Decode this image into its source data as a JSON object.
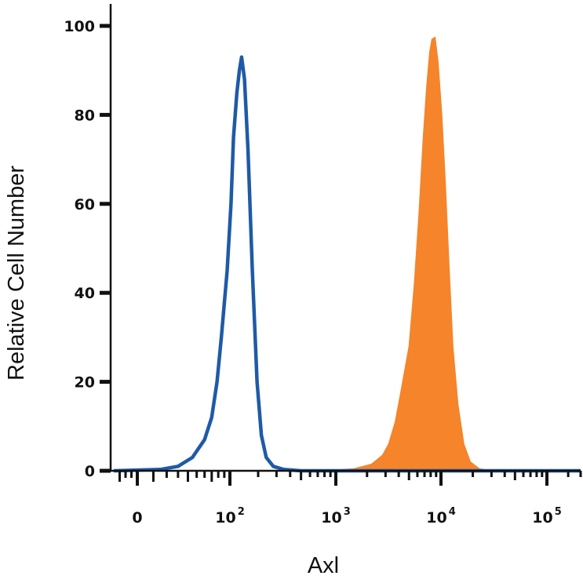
{
  "chart_data": {
    "type": "area",
    "xlabel": "Axl",
    "ylabel": "Relative Cell Number",
    "x_scale": "biexponential",
    "xlim": [
      -40,
      300000
    ],
    "ylim": [
      0,
      100
    ],
    "y_ticks": [
      {
        "value": 0,
        "label": "0"
      },
      {
        "value": 20,
        "label": "20"
      },
      {
        "value": 40,
        "label": "40"
      },
      {
        "value": 60,
        "label": "60"
      },
      {
        "value": 80,
        "label": "80"
      },
      {
        "value": 100,
        "label": "100"
      }
    ],
    "x_ticks": [
      {
        "value": 0,
        "base": "0",
        "exp": ""
      },
      {
        "value": 100,
        "base": "10",
        "exp": "2"
      },
      {
        "value": 1000,
        "base": "10",
        "exp": "3"
      },
      {
        "value": 10000,
        "base": "10",
        "exp": "4"
      },
      {
        "value": 100000,
        "base": "10",
        "exp": "5"
      }
    ],
    "grid": false,
    "series": [
      {
        "style": "outline",
        "color": "#1f5aa6",
        "points": [
          [
            -40,
            0
          ],
          [
            15,
            0.3
          ],
          [
            30,
            1
          ],
          [
            45,
            3
          ],
          [
            60,
            7
          ],
          [
            70,
            12
          ],
          [
            78,
            20
          ],
          [
            85,
            30
          ],
          [
            95,
            45
          ],
          [
            103,
            60
          ],
          [
            110,
            75
          ],
          [
            120,
            85
          ],
          [
            128,
            90
          ],
          [
            135,
            93
          ],
          [
            145,
            88
          ],
          [
            158,
            72
          ],
          [
            175,
            45
          ],
          [
            195,
            20
          ],
          [
            215,
            8
          ],
          [
            240,
            3
          ],
          [
            280,
            1
          ],
          [
            350,
            0.3
          ],
          [
            500,
            0
          ],
          [
            300000,
            0
          ]
        ]
      },
      {
        "style": "filled",
        "color": "#f5842a",
        "points": [
          [
            -40,
            0
          ],
          [
            800,
            0
          ],
          [
            1500,
            0.5
          ],
          [
            2200,
            1.5
          ],
          [
            2800,
            3.5
          ],
          [
            3200,
            6
          ],
          [
            3700,
            11
          ],
          [
            4200,
            18
          ],
          [
            5000,
            28
          ],
          [
            5600,
            42
          ],
          [
            6200,
            58
          ],
          [
            6800,
            75
          ],
          [
            7300,
            86
          ],
          [
            7800,
            94
          ],
          [
            8200,
            97
          ],
          [
            8800,
            97.5
          ],
          [
            9400,
            92
          ],
          [
            10200,
            80
          ],
          [
            11000,
            65
          ],
          [
            12000,
            45
          ],
          [
            13000,
            28
          ],
          [
            14500,
            15
          ],
          [
            16500,
            6
          ],
          [
            19000,
            2
          ],
          [
            23000,
            0.5
          ],
          [
            30000,
            0
          ],
          [
            300000,
            0
          ]
        ]
      }
    ]
  }
}
